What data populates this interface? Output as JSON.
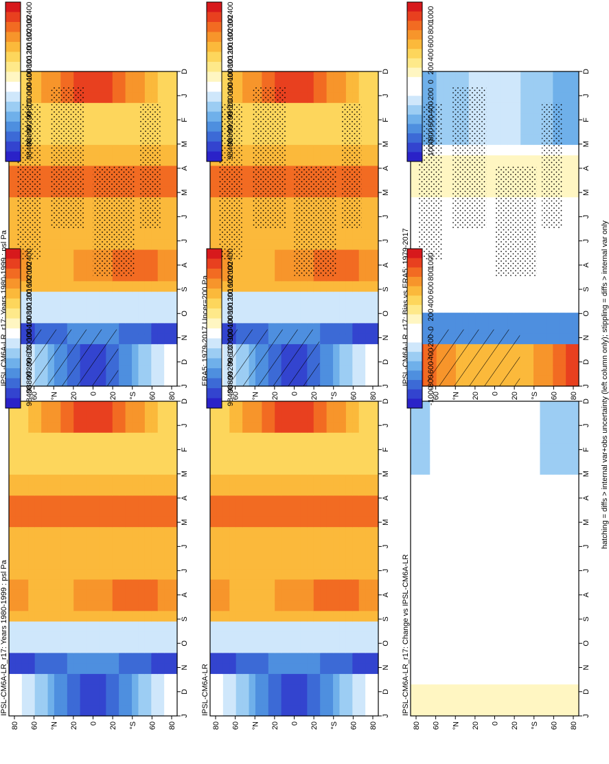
{
  "footer": "hatching = diffs > internal var+obs uncertainty (left column only); stippling = diffs > internal var only",
  "months": [
    "D",
    "J",
    "F",
    "M",
    "A",
    "M",
    "J",
    "J",
    "A",
    "S",
    "O",
    "N",
    "D",
    "J"
  ],
  "lat_ticks": [
    "80",
    "60",
    "°N",
    "20",
    "0",
    "20",
    "°S",
    "60",
    "80"
  ],
  "abs_scale": {
    "labels": [
      "102400",
      "102000",
      "101600",
      "101200",
      "100800",
      "100400",
      "100000",
      "99600",
      "99200",
      "98800",
      "98400"
    ],
    "colors": [
      "#d7191c",
      "#e8401f",
      "#f26b22",
      "#f7952b",
      "#fbb93b",
      "#fdd65c",
      "#fee98a",
      "#fff6c2",
      "#ffffff",
      "#cfe7fb",
      "#9ccdf3",
      "#6fb0ea",
      "#4e8fdf",
      "#3c6ad6",
      "#3344cf",
      "#2a22c8"
    ]
  },
  "diff_scale": {
    "labels": [
      "1000",
      "800",
      "600",
      "400",
      "200",
      "0",
      "-200",
      "-400",
      "-600",
      "-800",
      "-1000"
    ],
    "colors": [
      "#d7191c",
      "#e8401f",
      "#f26b22",
      "#f7952b",
      "#fbb93b",
      "#fdd65c",
      "#fee98a",
      "#fff6c2",
      "#ffffff",
      "#ffffff",
      "#cfe7fb",
      "#9ccdf3",
      "#6fb0ea",
      "#4e8fdf",
      "#3c6ad6",
      "#3344cf",
      "#2a22c8"
    ]
  },
  "chart_data": [
    {
      "type": "heatmap",
      "title": "IPSL-CM6A-LR_r17: Years 1980-1999 : psl Pa",
      "kind": "abs",
      "stipple": true,
      "hatch": true,
      "x": [
        "D",
        "J",
        "F",
        "M",
        "A",
        "M",
        "J",
        "J",
        "A",
        "S",
        "O",
        "N",
        "D",
        "J"
      ],
      "y": [
        "80",
        "60",
        "°N",
        "20",
        "0",
        "20",
        "°S",
        "60",
        "80"
      ]
    },
    {
      "type": "heatmap",
      "title": "IPSL-CM6A-LR_r17: Years 1980-1999 : psl Pa",
      "kind": "abs",
      "stipple": false,
      "hatch": false,
      "x": [
        "D",
        "J",
        "F",
        "M",
        "A",
        "M",
        "J",
        "J",
        "A",
        "S",
        "O",
        "N",
        "D",
        "J"
      ],
      "y": [
        "80",
        "60",
        "°N",
        "20",
        "0",
        "20",
        "°S",
        "60",
        "80"
      ]
    },
    {
      "type": "heatmap",
      "title": "ERA5: 1979-2017 Uncer=200 Pa",
      "kind": "abs",
      "stipple": true,
      "hatch": true,
      "x": [
        "D",
        "J",
        "F",
        "M",
        "A",
        "M",
        "J",
        "J",
        "A",
        "S",
        "O",
        "N",
        "D",
        "J"
      ],
      "y": [
        "80",
        "60",
        "°N",
        "20",
        "0",
        "20",
        "°S",
        "60",
        "80"
      ]
    },
    {
      "type": "heatmap",
      "title": "IPSL-CM6A-LR",
      "kind": "abs",
      "stipple": false,
      "hatch": false,
      "x": [
        "D",
        "J",
        "F",
        "M",
        "A",
        "M",
        "J",
        "J",
        "A",
        "S",
        "O",
        "N",
        "D",
        "J"
      ],
      "y": [
        "80",
        "60",
        "°N",
        "20",
        "0",
        "20",
        "°S",
        "60",
        "80"
      ]
    },
    {
      "type": "heatmap",
      "title": "IPSL-CM6A-LR_r17: Bias vs ERA5: 1979-2017",
      "kind": "bias",
      "stipple": true,
      "hatch": true,
      "x": [
        "D",
        "J",
        "F",
        "M",
        "A",
        "M",
        "J",
        "J",
        "A",
        "S",
        "O",
        "N",
        "D",
        "J"
      ],
      "y": [
        "80",
        "60",
        "°N",
        "20",
        "0",
        "20",
        "°S",
        "60",
        "80"
      ]
    },
    {
      "type": "heatmap",
      "title": "IPSL-CM6A-LR_r17: Change vs IPSL-CM6A-LR",
      "kind": "change",
      "stipple": false,
      "hatch": false,
      "x": [
        "D",
        "J",
        "F",
        "M",
        "A",
        "M",
        "J",
        "J",
        "A",
        "S",
        "O",
        "N",
        "D",
        "J"
      ],
      "y": [
        "80",
        "60",
        "°N",
        "20",
        "0",
        "20",
        "°S",
        "60",
        "80"
      ]
    }
  ]
}
